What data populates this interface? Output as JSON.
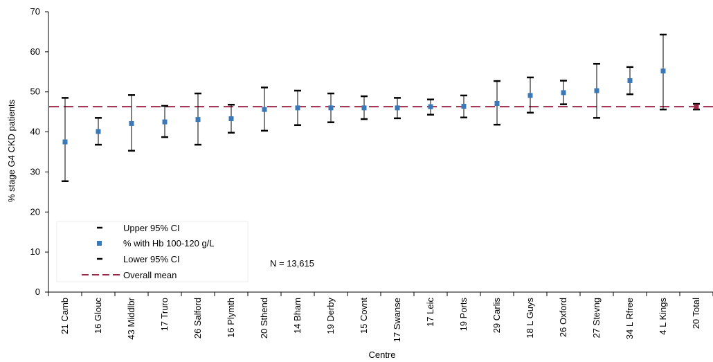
{
  "chart_data": {
    "type": "scatter",
    "xlabel": "Centre",
    "ylabel": "% stage G4 CKD patients",
    "ylim": [
      0,
      70
    ],
    "yticks": [
      0,
      10,
      20,
      30,
      40,
      50,
      60,
      70
    ],
    "grid": false,
    "categories": [
      "21 Camb",
      "16 Glouc",
      "43 Middlbr",
      "17 Truro",
      "26 Salford",
      "16 Plymth",
      "20 Sthend",
      "14 Bham",
      "19 Derby",
      "15 Covnt",
      "17 Swanse",
      "17 Leic",
      "19 Ports",
      "29 Carlis",
      "18 L Guys",
      "26 Oxford",
      "27 Stevng",
      "34 L Rfree",
      "4 L Kings",
      "20 Total"
    ],
    "series": [
      {
        "name": "Upper 95% CI",
        "values": [
          48.5,
          43.5,
          49.2,
          46.5,
          49.6,
          46.8,
          51.1,
          50.3,
          49.6,
          48.9,
          48.5,
          48.1,
          49.1,
          52.7,
          53.6,
          52.8,
          57.0,
          56.2,
          64.3,
          47.0
        ]
      },
      {
        "name": "% with Hb 100-120 g/L",
        "values": [
          37.5,
          40.1,
          42.1,
          42.5,
          43.1,
          43.3,
          45.6,
          46.0,
          46.0,
          46.0,
          46.0,
          46.3,
          46.4,
          47.1,
          49.1,
          49.8,
          50.3,
          52.8,
          55.2,
          46.3
        ]
      },
      {
        "name": "Lower 95% CI",
        "values": [
          27.7,
          36.8,
          35.3,
          38.7,
          36.8,
          39.8,
          40.3,
          41.7,
          42.4,
          43.2,
          43.4,
          44.3,
          43.6,
          41.8,
          44.8,
          46.9,
          43.5,
          49.4,
          45.6,
          45.6
        ]
      }
    ],
    "overall_mean": {
      "name": "Overall mean",
      "value": 46.3
    },
    "annotation": "N = 13,615",
    "legend_position": "bottom-left",
    "colors": {
      "marker": "#3a78b8",
      "ci": "#000000",
      "mean": "#9b2948",
      "total_marker": "#9b2948"
    }
  }
}
